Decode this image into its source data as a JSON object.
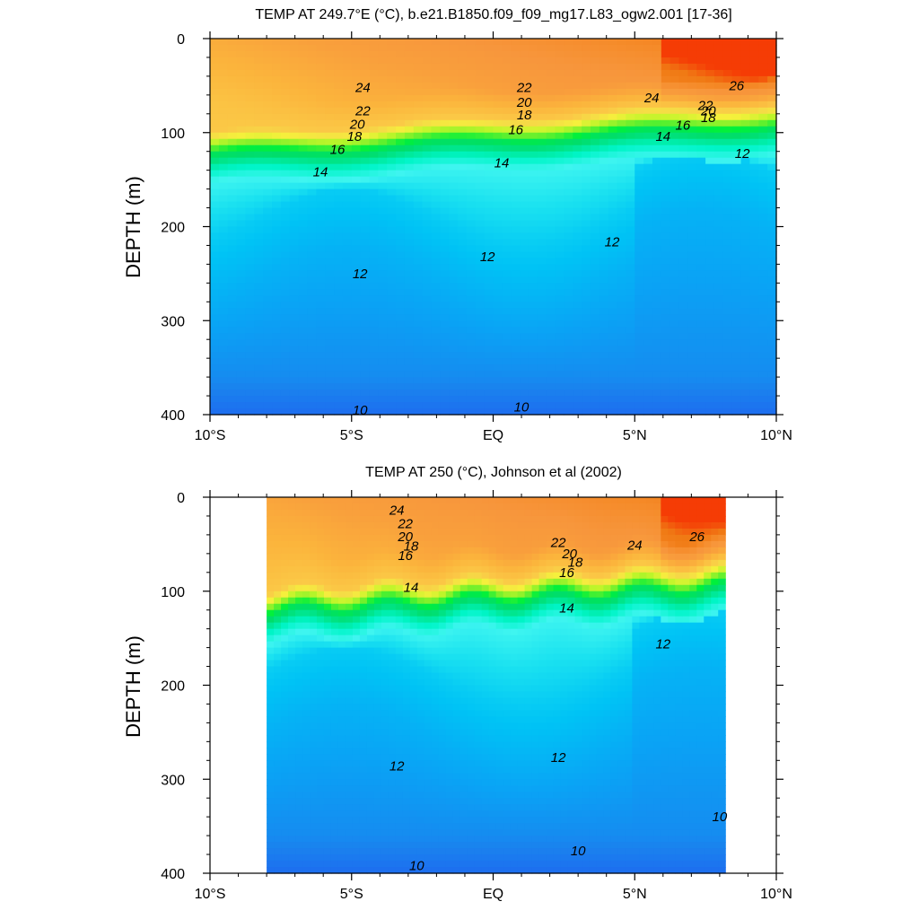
{
  "chart_data": [
    {
      "type": "heatmap",
      "title": "TEMP AT 249.7°E (°C), b.e21.B1850.f09_f09_mg17.L83_ogw2.001 [17-36]",
      "ylabel": "DEPTH (m)",
      "xlabel": "",
      "xlim": [
        -10,
        10
      ],
      "ylim": [
        0,
        400
      ],
      "y_inverted": true,
      "data_xlim": [
        -10,
        10
      ],
      "x_ticks": [
        {
          "v": -10,
          "label": "10°S"
        },
        {
          "v": -5,
          "label": "5°S"
        },
        {
          "v": 0,
          "label": "EQ"
        },
        {
          "v": 5,
          "label": "5°N"
        },
        {
          "v": 10,
          "label": "10°N"
        }
      ],
      "y_ticks": [
        0,
        100,
        200,
        300,
        400
      ],
      "contour_interval": 1,
      "contour_labels": [
        {
          "x": -4.6,
          "y": 52,
          "text": "24"
        },
        {
          "x": -4.6,
          "y": 77,
          "text": "22"
        },
        {
          "x": -4.8,
          "y": 91,
          "text": "20"
        },
        {
          "x": -4.9,
          "y": 104,
          "text": "18"
        },
        {
          "x": -5.5,
          "y": 118,
          "text": "16"
        },
        {
          "x": -6.1,
          "y": 142,
          "text": "14"
        },
        {
          "x": -4.7,
          "y": 250,
          "text": "12"
        },
        {
          "x": -4.7,
          "y": 395,
          "text": "10"
        },
        {
          "x": 1.1,
          "y": 52,
          "text": "22"
        },
        {
          "x": 1.1,
          "y": 68,
          "text": "20"
        },
        {
          "x": 1.1,
          "y": 81,
          "text": "18"
        },
        {
          "x": 0.8,
          "y": 97,
          "text": "16"
        },
        {
          "x": 0.3,
          "y": 132,
          "text": "14"
        },
        {
          "x": -0.2,
          "y": 232,
          "text": "12"
        },
        {
          "x": 1.0,
          "y": 392,
          "text": "10"
        },
        {
          "x": 5.6,
          "y": 63,
          "text": "24"
        },
        {
          "x": 7.5,
          "y": 71,
          "text": "22"
        },
        {
          "x": 7.6,
          "y": 77,
          "text": "20"
        },
        {
          "x": 7.6,
          "y": 84,
          "text": "18"
        },
        {
          "x": 6.7,
          "y": 92,
          "text": "16"
        },
        {
          "x": 6.0,
          "y": 104,
          "text": "14"
        },
        {
          "x": 8.8,
          "y": 122,
          "text": "12"
        },
        {
          "x": 4.2,
          "y": 216,
          "text": "12"
        },
        {
          "x": 8.6,
          "y": 50,
          "text": "26"
        }
      ]
    },
    {
      "type": "heatmap",
      "title": "TEMP AT 250 (°C), Johnson et al (2002)",
      "ylabel": "DEPTH (m)",
      "xlabel": "",
      "xlim": [
        -10,
        10
      ],
      "ylim": [
        0,
        400
      ],
      "y_inverted": true,
      "data_xlim": [
        -8.0,
        8.2
      ],
      "x_ticks": [
        {
          "v": -10,
          "label": "10°S"
        },
        {
          "v": -5,
          "label": "5°S"
        },
        {
          "v": 0,
          "label": "EQ"
        },
        {
          "v": 5,
          "label": "5°N"
        },
        {
          "v": 10,
          "label": "10°N"
        }
      ],
      "y_ticks": [
        0,
        100,
        200,
        300,
        400
      ],
      "contour_interval": 1,
      "contour_labels": [
        {
          "x": -3.4,
          "y": 14,
          "text": "24"
        },
        {
          "x": -3.1,
          "y": 28,
          "text": "22"
        },
        {
          "x": -3.1,
          "y": 42,
          "text": "20"
        },
        {
          "x": -2.9,
          "y": 52,
          "text": "18"
        },
        {
          "x": -3.1,
          "y": 62,
          "text": "16"
        },
        {
          "x": -2.9,
          "y": 96,
          "text": "14"
        },
        {
          "x": -3.4,
          "y": 286,
          "text": "12"
        },
        {
          "x": -2.7,
          "y": 392,
          "text": "10"
        },
        {
          "x": 2.3,
          "y": 48,
          "text": "22"
        },
        {
          "x": 2.7,
          "y": 60,
          "text": "20"
        },
        {
          "x": 2.9,
          "y": 69,
          "text": "18"
        },
        {
          "x": 2.6,
          "y": 80,
          "text": "16"
        },
        {
          "x": 2.6,
          "y": 118,
          "text": "14"
        },
        {
          "x": 2.3,
          "y": 277,
          "text": "12"
        },
        {
          "x": 3.0,
          "y": 376,
          "text": "10"
        },
        {
          "x": 5.0,
          "y": 51,
          "text": "24"
        },
        {
          "x": 7.2,
          "y": 42,
          "text": "26"
        },
        {
          "x": 6.0,
          "y": 156,
          "text": "12"
        },
        {
          "x": 8.0,
          "y": 340,
          "text": "10"
        }
      ]
    }
  ]
}
